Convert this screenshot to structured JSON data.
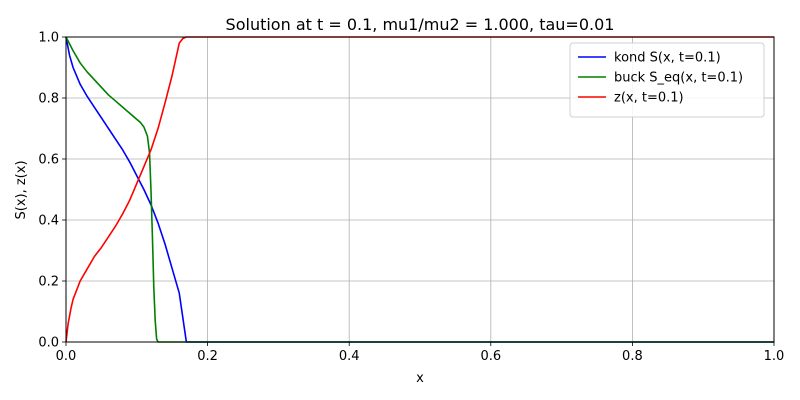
{
  "chart_data": {
    "type": "line",
    "title": "Solution at t = 0.1, mu1/mu2 = 1.000, tau=0.01",
    "xlabel": "x",
    "ylabel": "S(x), z(x)",
    "xlim": [
      0.0,
      1.0
    ],
    "ylim": [
      0.0,
      1.0
    ],
    "x_ticks": [
      0.0,
      0.2,
      0.4,
      0.6,
      0.8,
      1.0
    ],
    "x_tick_labels": [
      "0.0",
      "0.2",
      "0.4",
      "0.6",
      "0.8",
      "1.0"
    ],
    "y_ticks": [
      0.0,
      0.2,
      0.4,
      0.6,
      0.8,
      1.0
    ],
    "y_tick_labels": [
      "0.0",
      "0.2",
      "0.4",
      "0.6",
      "0.8",
      "1.0"
    ],
    "grid": true,
    "legend_position": "top-right",
    "series": [
      {
        "name": "kond S(x, t=0.1)",
        "color": "#0000ff",
        "x": [
          0.0,
          0.005,
          0.01,
          0.02,
          0.03,
          0.04,
          0.05,
          0.06,
          0.07,
          0.08,
          0.09,
          0.1,
          0.11,
          0.12,
          0.13,
          0.14,
          0.15,
          0.16,
          0.165,
          0.17,
          0.2,
          0.4,
          0.6,
          0.8,
          1.0
        ],
        "y": [
          1.0,
          0.94,
          0.9,
          0.845,
          0.805,
          0.77,
          0.735,
          0.7,
          0.665,
          0.63,
          0.59,
          0.545,
          0.5,
          0.45,
          0.39,
          0.32,
          0.24,
          0.16,
          0.08,
          0.0,
          0.0,
          0.0,
          0.0,
          0.0,
          0.0
        ]
      },
      {
        "name": "buck S_eq(x, t=0.1)",
        "color": "#008000",
        "x": [
          0.0,
          0.01,
          0.02,
          0.03,
          0.04,
          0.05,
          0.06,
          0.07,
          0.08,
          0.09,
          0.1,
          0.105,
          0.11,
          0.115,
          0.118,
          0.12,
          0.122,
          0.124,
          0.126,
          0.128,
          0.13,
          0.2,
          0.4,
          0.6,
          0.8,
          1.0
        ],
        "y": [
          1.0,
          0.955,
          0.915,
          0.885,
          0.86,
          0.835,
          0.81,
          0.79,
          0.77,
          0.75,
          0.73,
          0.72,
          0.705,
          0.675,
          0.62,
          0.5,
          0.35,
          0.18,
          0.07,
          0.01,
          0.0,
          0.0,
          0.0,
          0.0,
          0.0,
          0.0
        ]
      },
      {
        "name": "z(x, t=0.1)",
        "color": "#ff0000",
        "x": [
          0.0,
          0.003,
          0.007,
          0.01,
          0.02,
          0.03,
          0.04,
          0.05,
          0.06,
          0.07,
          0.08,
          0.09,
          0.1,
          0.11,
          0.12,
          0.13,
          0.14,
          0.15,
          0.16,
          0.165,
          0.17,
          0.2,
          0.4,
          0.6,
          0.8,
          1.0
        ],
        "y": [
          0.0,
          0.06,
          0.11,
          0.14,
          0.2,
          0.24,
          0.28,
          0.31,
          0.345,
          0.38,
          0.42,
          0.465,
          0.52,
          0.575,
          0.63,
          0.7,
          0.785,
          0.875,
          0.98,
          0.995,
          1.0,
          1.0,
          1.0,
          1.0,
          1.0,
          1.0
        ]
      }
    ]
  }
}
